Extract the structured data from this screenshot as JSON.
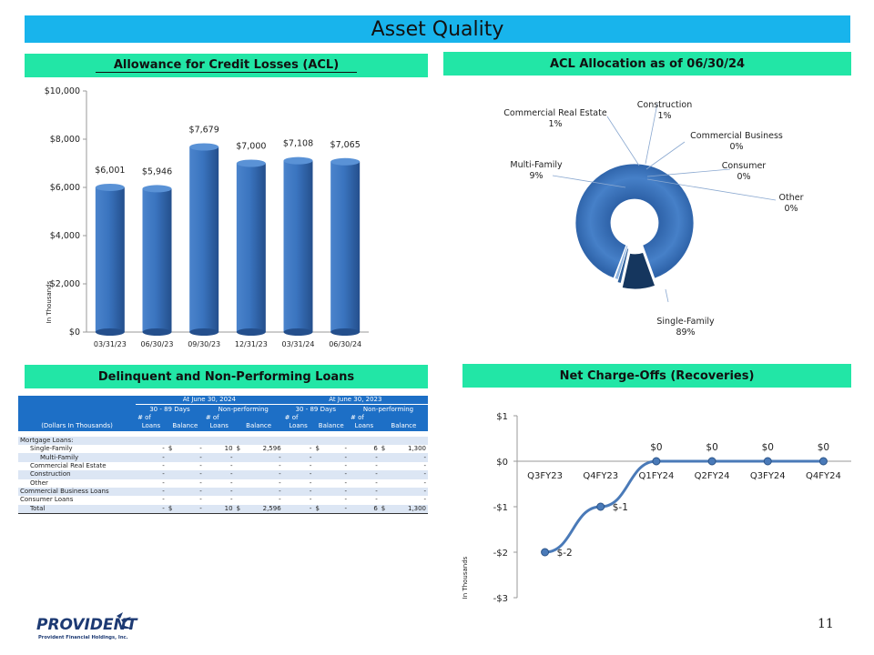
{
  "page": {
    "title": "Asset Quality",
    "page_number": "11"
  },
  "sections": {
    "acl": "Allowance for Credit Losses (ACL)",
    "allocation": "ACL Allocation as of 06/30/24",
    "delinquent": "Delinquent and Non-Performing Loans",
    "nco": "Net Charge-Offs (Recoveries)"
  },
  "logo": {
    "name": "PROVIDENT",
    "subtitle": "Provident Financial Holdings, Inc."
  },
  "table": {
    "group1": "At June 30, 2024",
    "group2": "At June 30, 2023",
    "sub_30_89": "30 - 89 Days",
    "sub_np": "Non-performing",
    "hdr_dollars": "(Dollars In Thousands)",
    "hdr_num_of": "# of",
    "hdr_loans": "Loans",
    "hdr_balance": "Balance",
    "mortgage_label": "Mortgage Loans:",
    "rows": [
      {
        "label": "Single-Family",
        "indent": 1,
        "c1": "-",
        "c2a": "$",
        "c2": "-",
        "c3": "10",
        "c4a": "$",
        "c4": "2,596",
        "c5": "-",
        "c6a": "$",
        "c6": "-",
        "c7": "6",
        "c8a": "$",
        "c8": "1,300"
      },
      {
        "label": "Multi-Family",
        "indent": 2,
        "c1": "-",
        "c2a": "",
        "c2": "-",
        "c3": "-",
        "c4a": "",
        "c4": "-",
        "c5": "-",
        "c6a": "",
        "c6": "-",
        "c7": "-",
        "c8a": "",
        "c8": "-"
      },
      {
        "label": "Commercial Real Estate",
        "indent": 1,
        "c1": "-",
        "c2a": "",
        "c2": "-",
        "c3": "-",
        "c4a": "",
        "c4": "-",
        "c5": "-",
        "c6a": "",
        "c6": "-",
        "c7": "-",
        "c8a": "",
        "c8": "-"
      },
      {
        "label": "Construction",
        "indent": 1,
        "c1": "-",
        "c2a": "",
        "c2": "-",
        "c3": "-",
        "c4a": "",
        "c4": "-",
        "c5": "-",
        "c6a": "",
        "c6": "-",
        "c7": "-",
        "c8a": "",
        "c8": "-"
      },
      {
        "label": "Other",
        "indent": 1,
        "c1": "-",
        "c2a": "",
        "c2": "-",
        "c3": "-",
        "c4a": "",
        "c4": "-",
        "c5": "-",
        "c6a": "",
        "c6": "-",
        "c7": "-",
        "c8a": "",
        "c8": "-"
      },
      {
        "label": "Commercial Business Loans",
        "indent": 0,
        "c1": "-",
        "c2a": "",
        "c2": "-",
        "c3": "-",
        "c4a": "",
        "c4": "-",
        "c5": "-",
        "c6a": "",
        "c6": "-",
        "c7": "-",
        "c8a": "",
        "c8": "-"
      },
      {
        "label": "Consumer Loans",
        "indent": 0,
        "c1": "-",
        "c2a": "",
        "c2": "-",
        "c3": "-",
        "c4a": "",
        "c4": "-",
        "c5": "-",
        "c6a": "",
        "c6": "-",
        "c7": "-",
        "c8a": "",
        "c8": "-"
      },
      {
        "label": "Total",
        "indent": 1,
        "c1": "-",
        "c2a": "$",
        "c2": "-",
        "c3": "10",
        "c4a": "$",
        "c4": "2,596",
        "c5": "-",
        "c6a": "$",
        "c6": "-",
        "c7": "6",
        "c8a": "$",
        "c8": "1,300"
      }
    ]
  },
  "chart_data": [
    {
      "type": "bar",
      "title": "Allowance for Credit Losses (ACL)",
      "categories": [
        "03/31/23",
        "06/30/23",
        "09/30/23",
        "12/31/23",
        "03/31/24",
        "06/30/24"
      ],
      "values": [
        6001,
        5946,
        7679,
        7000,
        7108,
        7065
      ],
      "data_labels": [
        "$6,001",
        "$5,946",
        "$7,679",
        "$7,000",
        "$7,108",
        "$7,065"
      ],
      "ylabel": "In Thousands",
      "ylim": [
        0,
        10000
      ],
      "yticks": [
        0,
        2000,
        4000,
        6000,
        8000,
        10000
      ],
      "ytick_labels": [
        "$0",
        "$2,000",
        "$4,000",
        "$6,000",
        "$8,000",
        "$10,000"
      ],
      "color": "#3a74bf"
    },
    {
      "type": "pie",
      "title": "ACL Allocation as of 06/30/24",
      "labels": [
        "Single-Family",
        "Multi-Family",
        "Commercial Real Estate",
        "Construction",
        "Commercial Business",
        "Consumer",
        "Other"
      ],
      "values": [
        89,
        9,
        1,
        1,
        0,
        0,
        0
      ],
      "pct_labels": [
        "89%",
        "9%",
        "1%",
        "1%",
        "0%",
        "0%",
        "0%"
      ],
      "colors": [
        "#3a74bf",
        "#15365e",
        "#2b5d9a",
        "#8fb4e0",
        "#a9c4e6",
        "#c3d6ee",
        "#d5e2f3"
      ]
    },
    {
      "type": "line",
      "title": "Net Charge-Offs (Recoveries)",
      "categories": [
        "Q3FY23",
        "Q4FY23",
        "Q1FY24",
        "Q2FY24",
        "Q3FY24",
        "Q4FY24"
      ],
      "values": [
        -2,
        -1,
        0,
        0,
        0,
        0
      ],
      "data_labels": [
        "$-2",
        "$-1",
        "$0",
        "$0",
        "$0",
        "$0"
      ],
      "ylabel": "In Thousands",
      "ylim": [
        -3,
        1
      ],
      "yticks": [
        -3,
        -2,
        -1,
        0,
        1
      ],
      "ytick_labels": [
        "-$3",
        "-$2",
        "-$1",
        "$0",
        "$1"
      ],
      "color": "#4a7ab8"
    }
  ]
}
